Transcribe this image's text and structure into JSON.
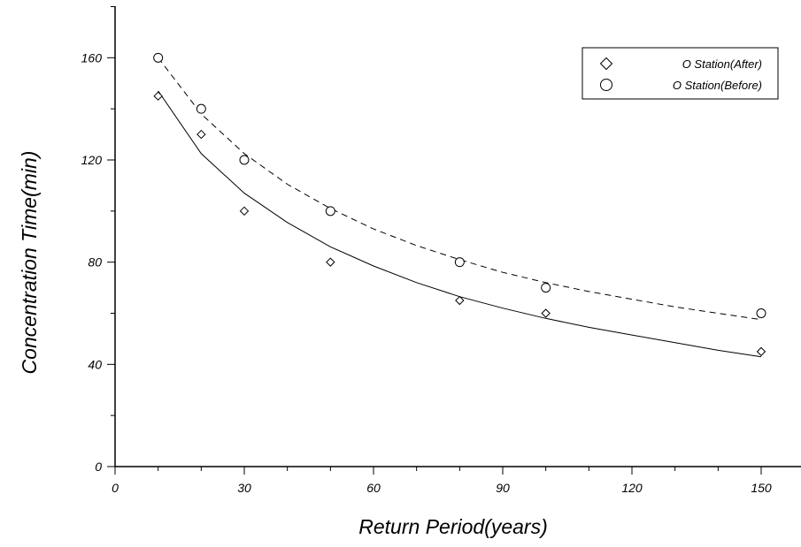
{
  "chart_data": {
    "type": "scatter",
    "title": "",
    "xlabel": "Return Period(years)",
    "ylabel": "Concentration Time(min)",
    "xlim": [
      0,
      160
    ],
    "ylim": [
      0,
      180
    ],
    "xticks": [
      0,
      30,
      60,
      90,
      120,
      150
    ],
    "yticks": [
      0,
      40,
      80,
      120,
      160
    ],
    "grid": false,
    "legend_position": "top-right",
    "series": [
      {
        "name": "O Station(After)",
        "marker": "diamond",
        "line_style": "solid",
        "x": [
          10,
          20,
          30,
          50,
          80,
          100,
          150
        ],
        "y": [
          145,
          130,
          100,
          80,
          65,
          60,
          45
        ],
        "fit": {
          "x": [
            10,
            20,
            30,
            40,
            50,
            60,
            70,
            80,
            90,
            100,
            110,
            120,
            130,
            140,
            150
          ],
          "y": [
            147,
            122.5,
            107,
            95.5,
            86,
            78.5,
            72,
            66.5,
            62,
            58,
            54.5,
            51.5,
            48.5,
            45.5,
            43
          ]
        }
      },
      {
        "name": "O Station(Before)",
        "marker": "circle",
        "line_style": "dashed",
        "x": [
          10,
          20,
          30,
          50,
          80,
          100,
          150
        ],
        "y": [
          160,
          140,
          120,
          100,
          80,
          70,
          60
        ],
        "fit": {
          "x": [
            10,
            20,
            30,
            40,
            50,
            60,
            70,
            80,
            90,
            100,
            110,
            120,
            130,
            140,
            150
          ],
          "y": [
            160,
            138,
            122.5,
            110.5,
            101,
            93,
            86.5,
            81,
            76,
            72,
            68.5,
            65.5,
            62.5,
            60,
            57.5
          ]
        }
      }
    ]
  }
}
